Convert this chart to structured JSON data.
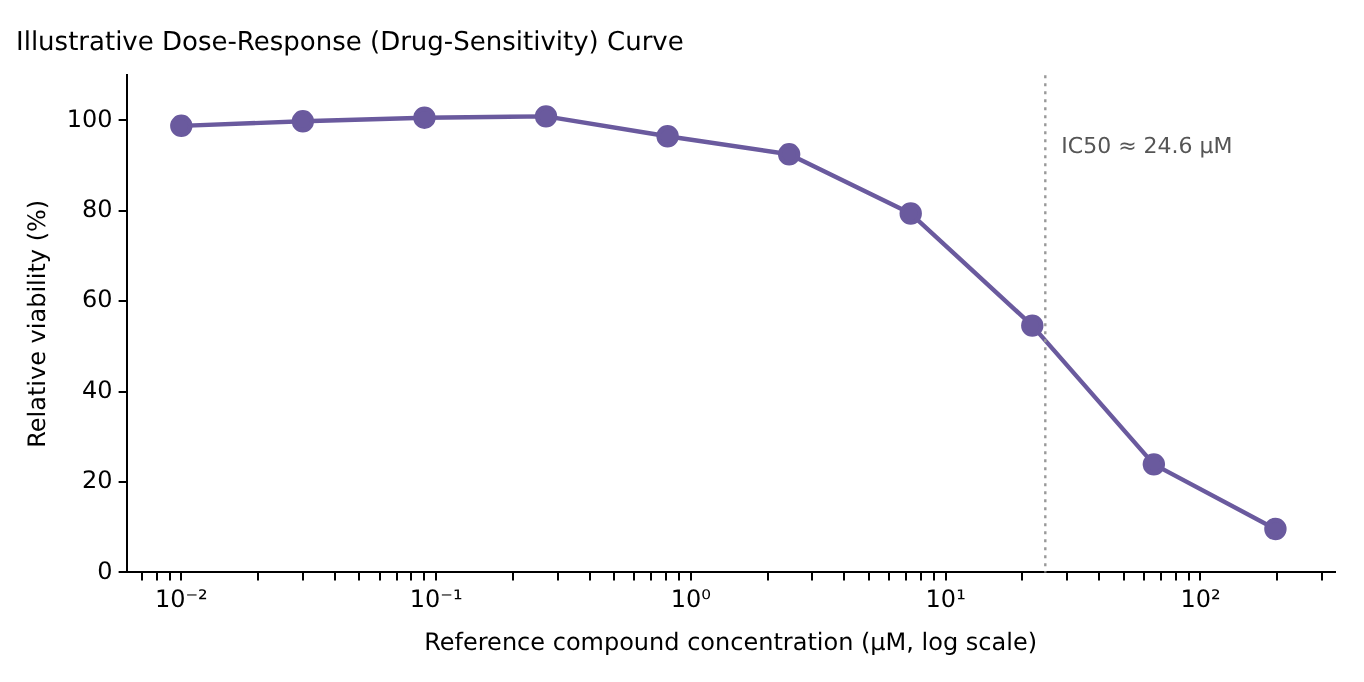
{
  "chart_data": {
    "type": "line",
    "title": "Illustrative Dose-Response (Drug-Sensitivity) Curve",
    "xlabel": "Reference compound concentration (µM, log scale)",
    "ylabel": "Relative viability (%)",
    "x": [
      0.01,
      0.03,
      0.09,
      0.27,
      0.81,
      2.43,
      7.29,
      21.87,
      65.61,
      196.83
    ],
    "series": [
      {
        "color": "#6a5a9e",
        "values": [
          98.8,
          99.8,
          100.6,
          100.9,
          96.5,
          92.5,
          79.4,
          54.6,
          23.9,
          9.6
        ]
      }
    ],
    "log": "x",
    "xlim": [
      0.0061,
      336
    ],
    "xticks": [
      {
        "value": 0.007,
        "label": null
      },
      {
        "value": 0.008,
        "label": null
      },
      {
        "value": 0.009,
        "label": null
      },
      {
        "value": 0.01,
        "label": "10⁻²"
      },
      {
        "value": 0.02,
        "label": null
      },
      {
        "value": 0.03,
        "label": null
      },
      {
        "value": 0.04,
        "label": null
      },
      {
        "value": 0.05,
        "label": null
      },
      {
        "value": 0.06,
        "label": null
      },
      {
        "value": 0.07,
        "label": null
      },
      {
        "value": 0.08,
        "label": null
      },
      {
        "value": 0.09,
        "label": null
      },
      {
        "value": 0.1,
        "label": "10⁻¹"
      },
      {
        "value": 0.2,
        "label": null
      },
      {
        "value": 0.3,
        "label": null
      },
      {
        "value": 0.4,
        "label": null
      },
      {
        "value": 0.5,
        "label": null
      },
      {
        "value": 0.6,
        "label": null
      },
      {
        "value": 0.7,
        "label": null
      },
      {
        "value": 0.8,
        "label": null
      },
      {
        "value": 0.9,
        "label": null
      },
      {
        "value": 1,
        "label": "10⁰"
      },
      {
        "value": 2,
        "label": null
      },
      {
        "value": 3,
        "label": null
      },
      {
        "value": 4,
        "label": null
      },
      {
        "value": 5,
        "label": null
      },
      {
        "value": 6,
        "label": null
      },
      {
        "value": 7,
        "label": null
      },
      {
        "value": 8,
        "label": null
      },
      {
        "value": 9,
        "label": null
      },
      {
        "value": 10,
        "label": "10¹"
      },
      {
        "value": 20,
        "label": null
      },
      {
        "value": 30,
        "label": null
      },
      {
        "value": 40,
        "label": null
      },
      {
        "value": 50,
        "label": null
      },
      {
        "value": 60,
        "label": null
      },
      {
        "value": 70,
        "label": null
      },
      {
        "value": 80,
        "label": null
      },
      {
        "value": 90,
        "label": null
      },
      {
        "value": 100,
        "label": "10²"
      },
      {
        "value": 200,
        "label": null
      },
      {
        "value": 300,
        "label": null
      }
    ],
    "ylim": [
      0,
      110
    ],
    "yticks": [
      0,
      20,
      40,
      60,
      80,
      100
    ],
    "ref_lines": [
      {
        "axis": "x",
        "value": 24.6,
        "label": "IC50 ≈ 24.6 µM",
        "color": "#999999",
        "line_style": "dotted"
      }
    ],
    "grid": false,
    "legend": false,
    "marker": "circle",
    "line_style": "solid"
  }
}
